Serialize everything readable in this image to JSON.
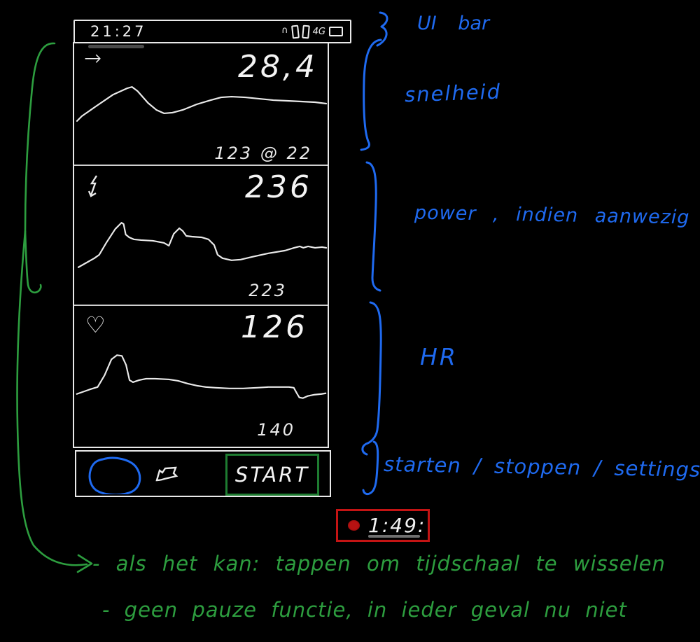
{
  "colors": {
    "background": "#000000",
    "ink": "#e9e9e9",
    "annotation_blue": "#1f6af0",
    "annotation_green": "#2d9e3f",
    "start_button_green": "#1e7c31",
    "timer_red": "#c41414",
    "record_dot": "#b61212"
  },
  "status_bar": {
    "time": "21:27",
    "network_label": "4G",
    "icons": [
      "signal-arc-icon",
      "signal-bar-icon",
      "signal-bar-icon",
      "battery-icon"
    ]
  },
  "screen": {
    "panels": [
      {
        "name": "speed",
        "icon": "arrow-right-icon",
        "glyph": "→",
        "value": "28,4",
        "caption": "123 @ 22",
        "points": [
          [
            4,
            111
          ],
          [
            11,
            104
          ],
          [
            31,
            90
          ],
          [
            56,
            73
          ],
          [
            76,
            64
          ],
          [
            83,
            62
          ],
          [
            91,
            68
          ],
          [
            106,
            85
          ],
          [
            118,
            95
          ],
          [
            129,
            100
          ],
          [
            141,
            99
          ],
          [
            156,
            95
          ],
          [
            176,
            87
          ],
          [
            196,
            81
          ],
          [
            211,
            77
          ],
          [
            226,
            76
          ],
          [
            246,
            77
          ],
          [
            266,
            79
          ],
          [
            286,
            81
          ],
          [
            306,
            82
          ],
          [
            326,
            83
          ],
          [
            346,
            84
          ],
          [
            362,
            86
          ]
        ]
      },
      {
        "name": "power",
        "icon": "lightning-down-icon",
        "glyph": "",
        "value": "236",
        "caption": "223",
        "points": [
          [
            6,
            145
          ],
          [
            29,
            132
          ],
          [
            36,
            127
          ],
          [
            46,
            110
          ],
          [
            59,
            90
          ],
          [
            68,
            81
          ],
          [
            71,
            83
          ],
          [
            74,
            98
          ],
          [
            79,
            102
          ],
          [
            86,
            105
          ],
          [
            96,
            106
          ],
          [
            113,
            107
          ],
          [
            129,
            110
          ],
          [
            136,
            114
          ],
          [
            143,
            97
          ],
          [
            151,
            89
          ],
          [
            156,
            93
          ],
          [
            161,
            100
          ],
          [
            169,
            101
          ],
          [
            183,
            102
          ],
          [
            193,
            105
          ],
          [
            201,
            113
          ],
          [
            206,
            127
          ],
          [
            213,
            132
          ],
          [
            226,
            135
          ],
          [
            239,
            134
          ],
          [
            256,
            130
          ],
          [
            279,
            125
          ],
          [
            303,
            121
          ],
          [
            316,
            117
          ],
          [
            324,
            115
          ],
          [
            329,
            117
          ],
          [
            336,
            115
          ],
          [
            346,
            117
          ],
          [
            356,
            116
          ],
          [
            362,
            117
          ]
        ]
      },
      {
        "name": "heart-rate",
        "icon": "heart-icon",
        "glyph": "♡",
        "value": "126",
        "caption": "140",
        "points": [
          [
            3,
            127
          ],
          [
            23,
            120
          ],
          [
            33,
            117
          ],
          [
            43,
            100
          ],
          [
            53,
            77
          ],
          [
            61,
            71
          ],
          [
            68,
            72
          ],
          [
            74,
            85
          ],
          [
            79,
            107
          ],
          [
            84,
            110
          ],
          [
            93,
            107
          ],
          [
            103,
            105
          ],
          [
            116,
            105
          ],
          [
            136,
            106
          ],
          [
            149,
            108
          ],
          [
            163,
            112
          ],
          [
            176,
            115
          ],
          [
            189,
            117
          ],
          [
            203,
            118
          ],
          [
            223,
            119
          ],
          [
            243,
            119
          ],
          [
            263,
            118
          ],
          [
            279,
            117
          ],
          [
            296,
            117
          ],
          [
            309,
            117
          ],
          [
            316,
            118
          ],
          [
            321,
            127
          ],
          [
            324,
            132
          ],
          [
            329,
            133
          ],
          [
            336,
            130
          ],
          [
            346,
            128
          ],
          [
            356,
            127
          ],
          [
            362,
            126
          ]
        ]
      }
    ]
  },
  "bottom_bar": {
    "icons": [
      "bicycle-icon",
      "route-flag-icon"
    ],
    "start_label": "START"
  },
  "timer": {
    "value": "1:49:"
  },
  "annotations": {
    "blue": [
      {
        "id": "ui-bar",
        "text": "UI bar"
      },
      {
        "id": "speed",
        "text": "snelheid"
      },
      {
        "id": "power",
        "text": "power , indien aanwezig"
      },
      {
        "id": "hr",
        "text": "HR"
      },
      {
        "id": "controls",
        "text": "starten / stoppen / settings?"
      }
    ],
    "green": [
      {
        "id": "timescale",
        "text": "- als het kan:  tappen  om  tijdschaal  te  wisselen"
      },
      {
        "id": "pause",
        "text": "- geen pauze functie, in ieder geval  nu  niet"
      }
    ]
  }
}
